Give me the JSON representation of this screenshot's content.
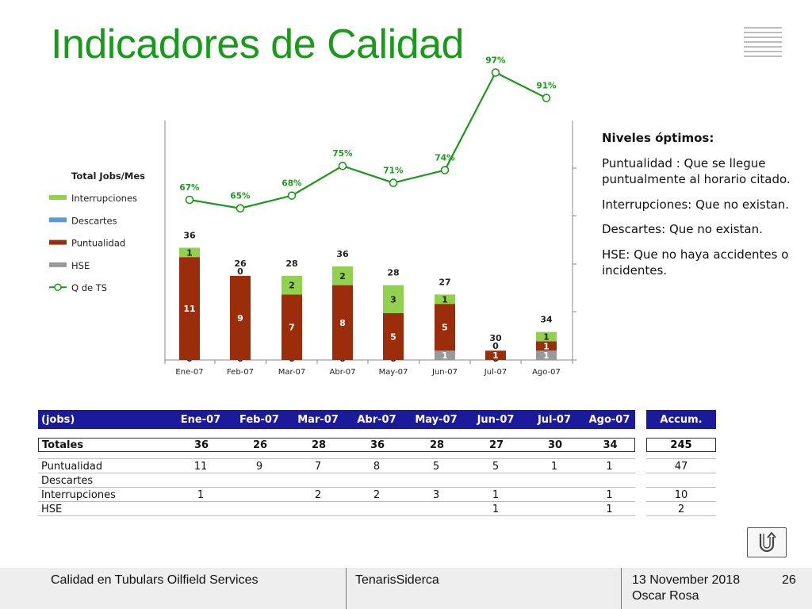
{
  "slide": {
    "title": "Indicadores de Calidad"
  },
  "chart_data": {
    "type": "bar",
    "categories": [
      "Ene-07",
      "Feb-07",
      "Mar-07",
      "Abr-07",
      "May-07",
      "Jun-07",
      "Jul-07",
      "Ago-07"
    ],
    "series": [
      {
        "name": "HSE",
        "color": "#999999",
        "values": [
          0,
          0,
          0,
          0,
          0,
          1,
          0,
          1
        ],
        "labels": [
          "0",
          "0",
          "0",
          "0",
          "0",
          "1",
          "0",
          "1"
        ]
      },
      {
        "name": "Puntualidad",
        "color": "#9b2d0b",
        "values": [
          11,
          9,
          7,
          8,
          5,
          5,
          1,
          1
        ],
        "labels": [
          "11",
          "9",
          "7",
          "8",
          "5",
          "5",
          "1",
          "1"
        ]
      },
      {
        "name": "Descartes",
        "color": "#5b9bd5",
        "values": [
          0,
          0,
          0,
          0,
          0,
          0,
          0,
          0
        ],
        "labels": [
          "0",
          "0",
          "0",
          "0",
          "0",
          "0",
          "0",
          "0"
        ]
      },
      {
        "name": "Interrupciones",
        "color": "#92d050",
        "values": [
          1,
          0,
          2,
          2,
          3,
          1,
          0,
          1
        ],
        "labels": [
          "1",
          "",
          "2",
          "2",
          "3",
          "1",
          "",
          "1"
        ]
      }
    ],
    "totals_label": "Total Jobs/Mes",
    "totals": [
      36,
      26,
      28,
      36,
      28,
      27,
      30,
      34
    ],
    "line": {
      "name": "Q de TS",
      "color": "#1a9a1a",
      "values": [
        67,
        65,
        68,
        75,
        71,
        74,
        97,
        91
      ],
      "labels": [
        "67%",
        "65%",
        "68%",
        "75%",
        "71%",
        "74%",
        "97%",
        "91%"
      ]
    },
    "legend_order": [
      "Interrupciones",
      "Descartes",
      "Puntualidad",
      "HSE",
      "Q de TS"
    ],
    "legend_placement": "left",
    "grid": false
  },
  "notes": {
    "heading": "Niveles óptimos:",
    "items": [
      "Puntualidad : Que se llegue puntualmente al horario citado.",
      "Interrupciones: Que no existan.",
      "Descartes: Que no existan.",
      "HSE: Que no haya accidentes o incidentes."
    ]
  },
  "table": {
    "corner": "(jobs)",
    "months": [
      "Ene-07",
      "Feb-07",
      "Mar-07",
      "Abr-07",
      "May-07",
      "Jun-07",
      "Jul-07",
      "Ago-07"
    ],
    "accum_label": "Accum.",
    "totals_row": {
      "label": "Totales",
      "values": [
        "36",
        "26",
        "28",
        "36",
        "28",
        "27",
        "30",
        "34"
      ],
      "accum": "245"
    },
    "rows": [
      {
        "label": "Puntualidad",
        "values": [
          "11",
          "9",
          "7",
          "8",
          "5",
          "5",
          "1",
          "1"
        ],
        "accum": "47"
      },
      {
        "label": "Descartes",
        "values": [
          "",
          "",
          "",
          "",
          "",
          "",
          "",
          ""
        ],
        "accum": ""
      },
      {
        "label": "Interrupciones",
        "values": [
          "1",
          "",
          "2",
          "2",
          "3",
          "1",
          "",
          "1"
        ],
        "accum": "10"
      },
      {
        "label": "HSE",
        "values": [
          "",
          "",
          "",
          "",
          "",
          "1",
          "",
          "1"
        ],
        "accum": "2"
      }
    ]
  },
  "footer": {
    "left": "Calidad en Tubulars Oilfield Services",
    "center": "TenarisSiderca",
    "date": "13 November 2018",
    "author": "Oscar Rosa",
    "page": "26"
  },
  "icons": {
    "logo": "tenaris-stripes-logo",
    "back": "return-arrow-icon"
  }
}
